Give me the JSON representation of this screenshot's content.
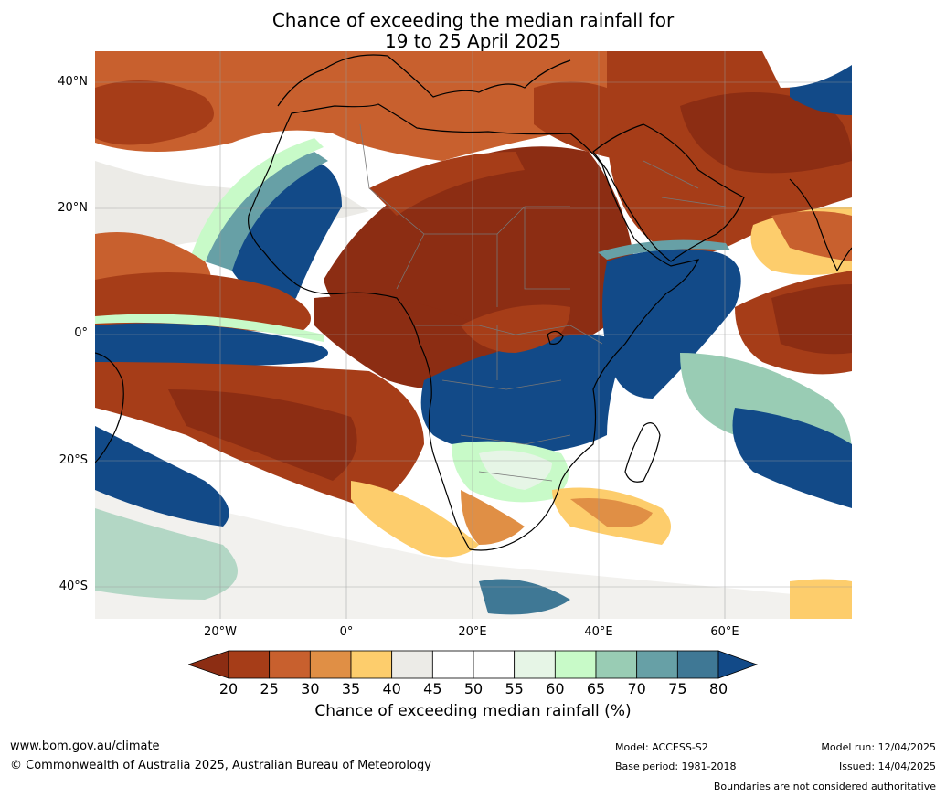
{
  "title": {
    "line1": "Chance of exceeding the median rainfall for",
    "line2": "19 to 25 April 2025"
  },
  "map": {
    "lat_labels": [
      "40°N",
      "20°N",
      "0°",
      "20°S",
      "40°S"
    ],
    "lon_labels": [
      "20°W",
      "0°",
      "20°E",
      "40°E",
      "60°E"
    ],
    "colors": {
      "below_20": "#8c2d13",
      "c20_25": "#a63d18",
      "c25_30": "#c8602e",
      "c30_35": "#e08f45",
      "c35_40": "#fdcd6c",
      "c40_45": "#ecebe7",
      "c45_55": "#ffffff",
      "c55_60": "#e6f5e6",
      "c60_65": "#c8fac8",
      "c65_70": "#99ccb4",
      "c70_75": "#67a0a6",
      "c75_80": "#3f7895",
      "above_80": "#124a88",
      "land_outline": "#000000",
      "border": "#777777"
    }
  },
  "colorbar": {
    "ticks": [
      "20",
      "25",
      "30",
      "35",
      "40",
      "45",
      "50",
      "55",
      "60",
      "65",
      "70",
      "75",
      "80"
    ],
    "segment_colors": [
      "#a63d18",
      "#c8602e",
      "#e08f45",
      "#fdcd6c",
      "#ecebe7",
      "#ffffff",
      "#ffffff",
      "#e6f5e6",
      "#c8fac8",
      "#99ccb4",
      "#67a0a6",
      "#3f7895"
    ],
    "low_arrow_color": "#8c2d13",
    "high_arrow_color": "#124a88",
    "label": "Chance of exceeding median rainfall (%)"
  },
  "footer": {
    "website": "www.bom.gov.au/climate",
    "copyright": "© Commonwealth of Australia 2025, Australian Bureau of Meteorology",
    "model": "Model: ACCESS-S2",
    "base_period": "Base period: 1981-2018",
    "model_run": "Model run: 12/04/2025",
    "issued": "Issued: 14/04/2025",
    "disclaimer": "Boundaries are not considered authoritative"
  }
}
